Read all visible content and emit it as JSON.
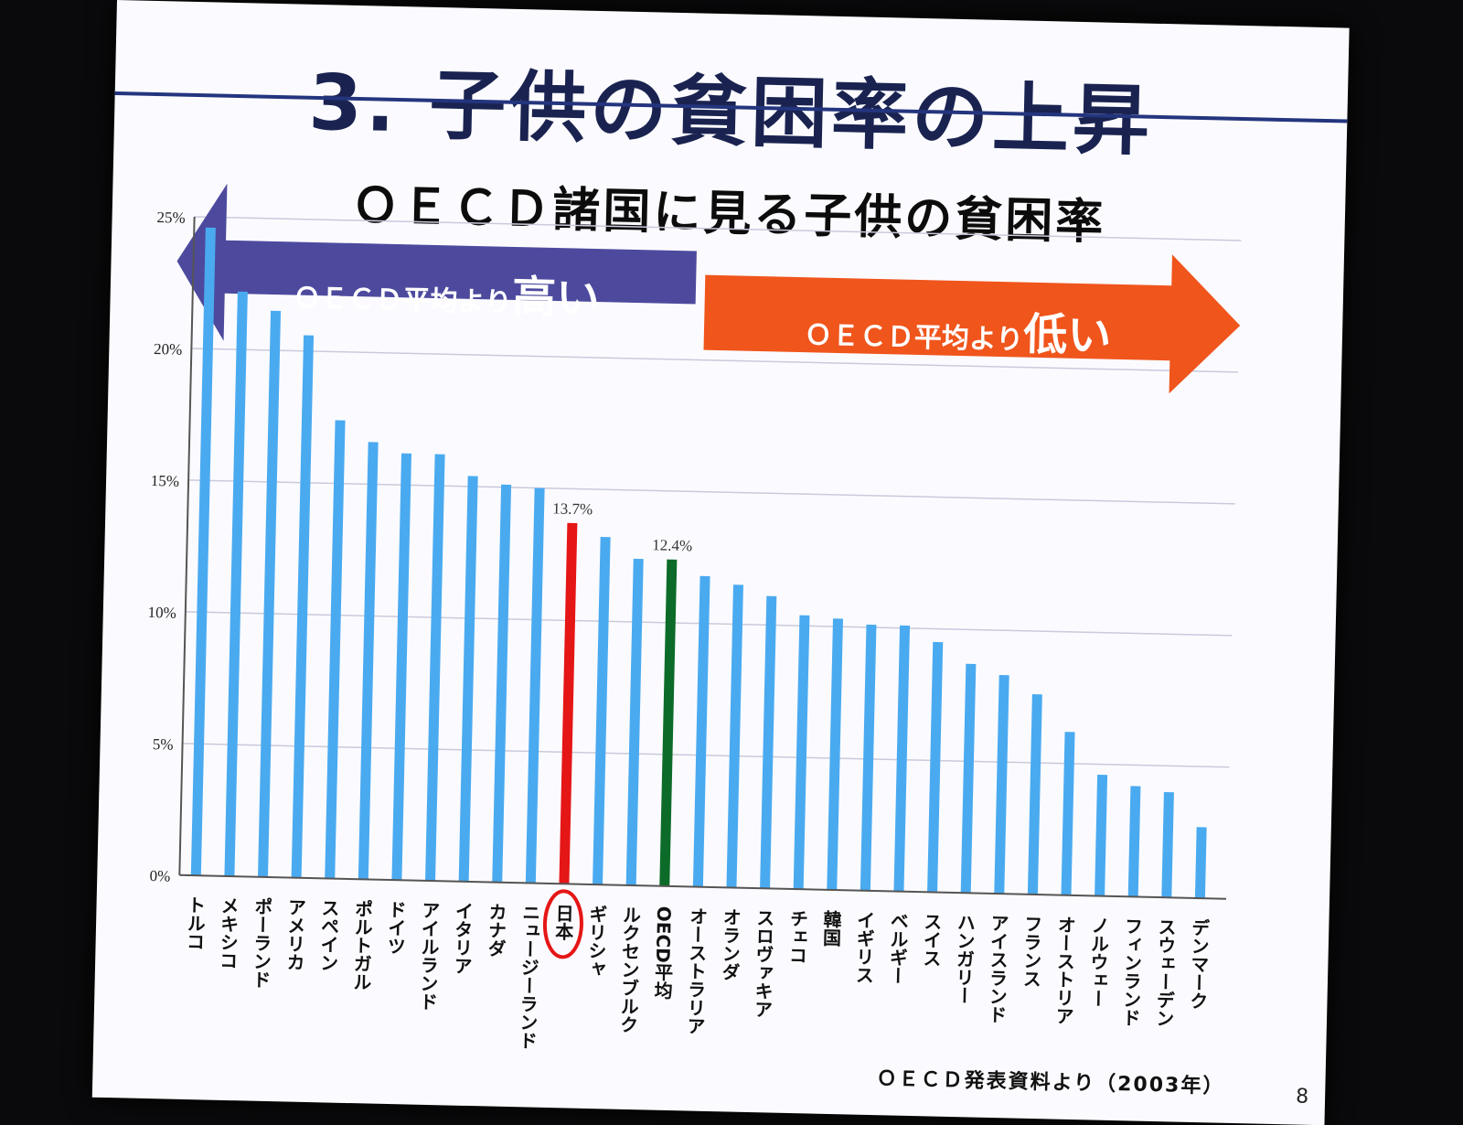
{
  "slide": {
    "title": "3. 子供の貧困率の上昇",
    "subtitle": "ＯＥＣＤ諸国に見る子供の貧困率",
    "high_prefix": "ＯＥＣＤ平均より",
    "high_emphasis": "高い",
    "low_prefix": "ＯＥＣＤ平均より",
    "low_emphasis": "低い",
    "source": "ＯＥＣＤ発表資料より（2003年）",
    "page_number": "8"
  },
  "colors": {
    "bar_default": "#4aaaf0",
    "bar_japan": "#e51616",
    "bar_oecd_average": "#0d6b29",
    "arrow_high": "#4d4a9e",
    "arrow_low": "#f0551c",
    "gridline": "#c9cadb"
  },
  "chart_data": {
    "type": "bar",
    "categories": [
      "トルコ",
      "メキシコ",
      "ポーランド",
      "アメリカ",
      "スペイン",
      "ポルトガル",
      "ドイツ",
      "アイルランド",
      "イタリア",
      "カナダ",
      "ニュージーランド",
      "日本",
      "ギリシャ",
      "ルクセンブルク",
      "OECD平均",
      "オーストラリア",
      "オランダ",
      "スロヴァキア",
      "チェコ",
      "韓国",
      "イギリス",
      "ベルギー",
      "スイス",
      "ハンガリー",
      "アイスランド",
      "フランス",
      "オーストリア",
      "ノルウェー",
      "フィンランド",
      "スウェーデン",
      "デンマーク"
    ],
    "values": [
      24.6,
      22.2,
      21.5,
      20.6,
      17.4,
      16.6,
      16.2,
      16.2,
      15.4,
      15.1,
      15.0,
      13.7,
      13.2,
      12.4,
      12.4,
      11.8,
      11.5,
      11.1,
      10.4,
      10.3,
      10.1,
      10.1,
      9.5,
      8.7,
      8.3,
      7.6,
      6.2,
      4.6,
      4.2,
      4.0,
      2.7
    ],
    "highlight": {
      "日本": "13.7%",
      "OECD平均": "12.4%"
    },
    "y_ticks": [
      "0%",
      "5%",
      "10%",
      "15%",
      "20%",
      "25%"
    ],
    "ylim": [
      0,
      25
    ],
    "grid": true
  }
}
